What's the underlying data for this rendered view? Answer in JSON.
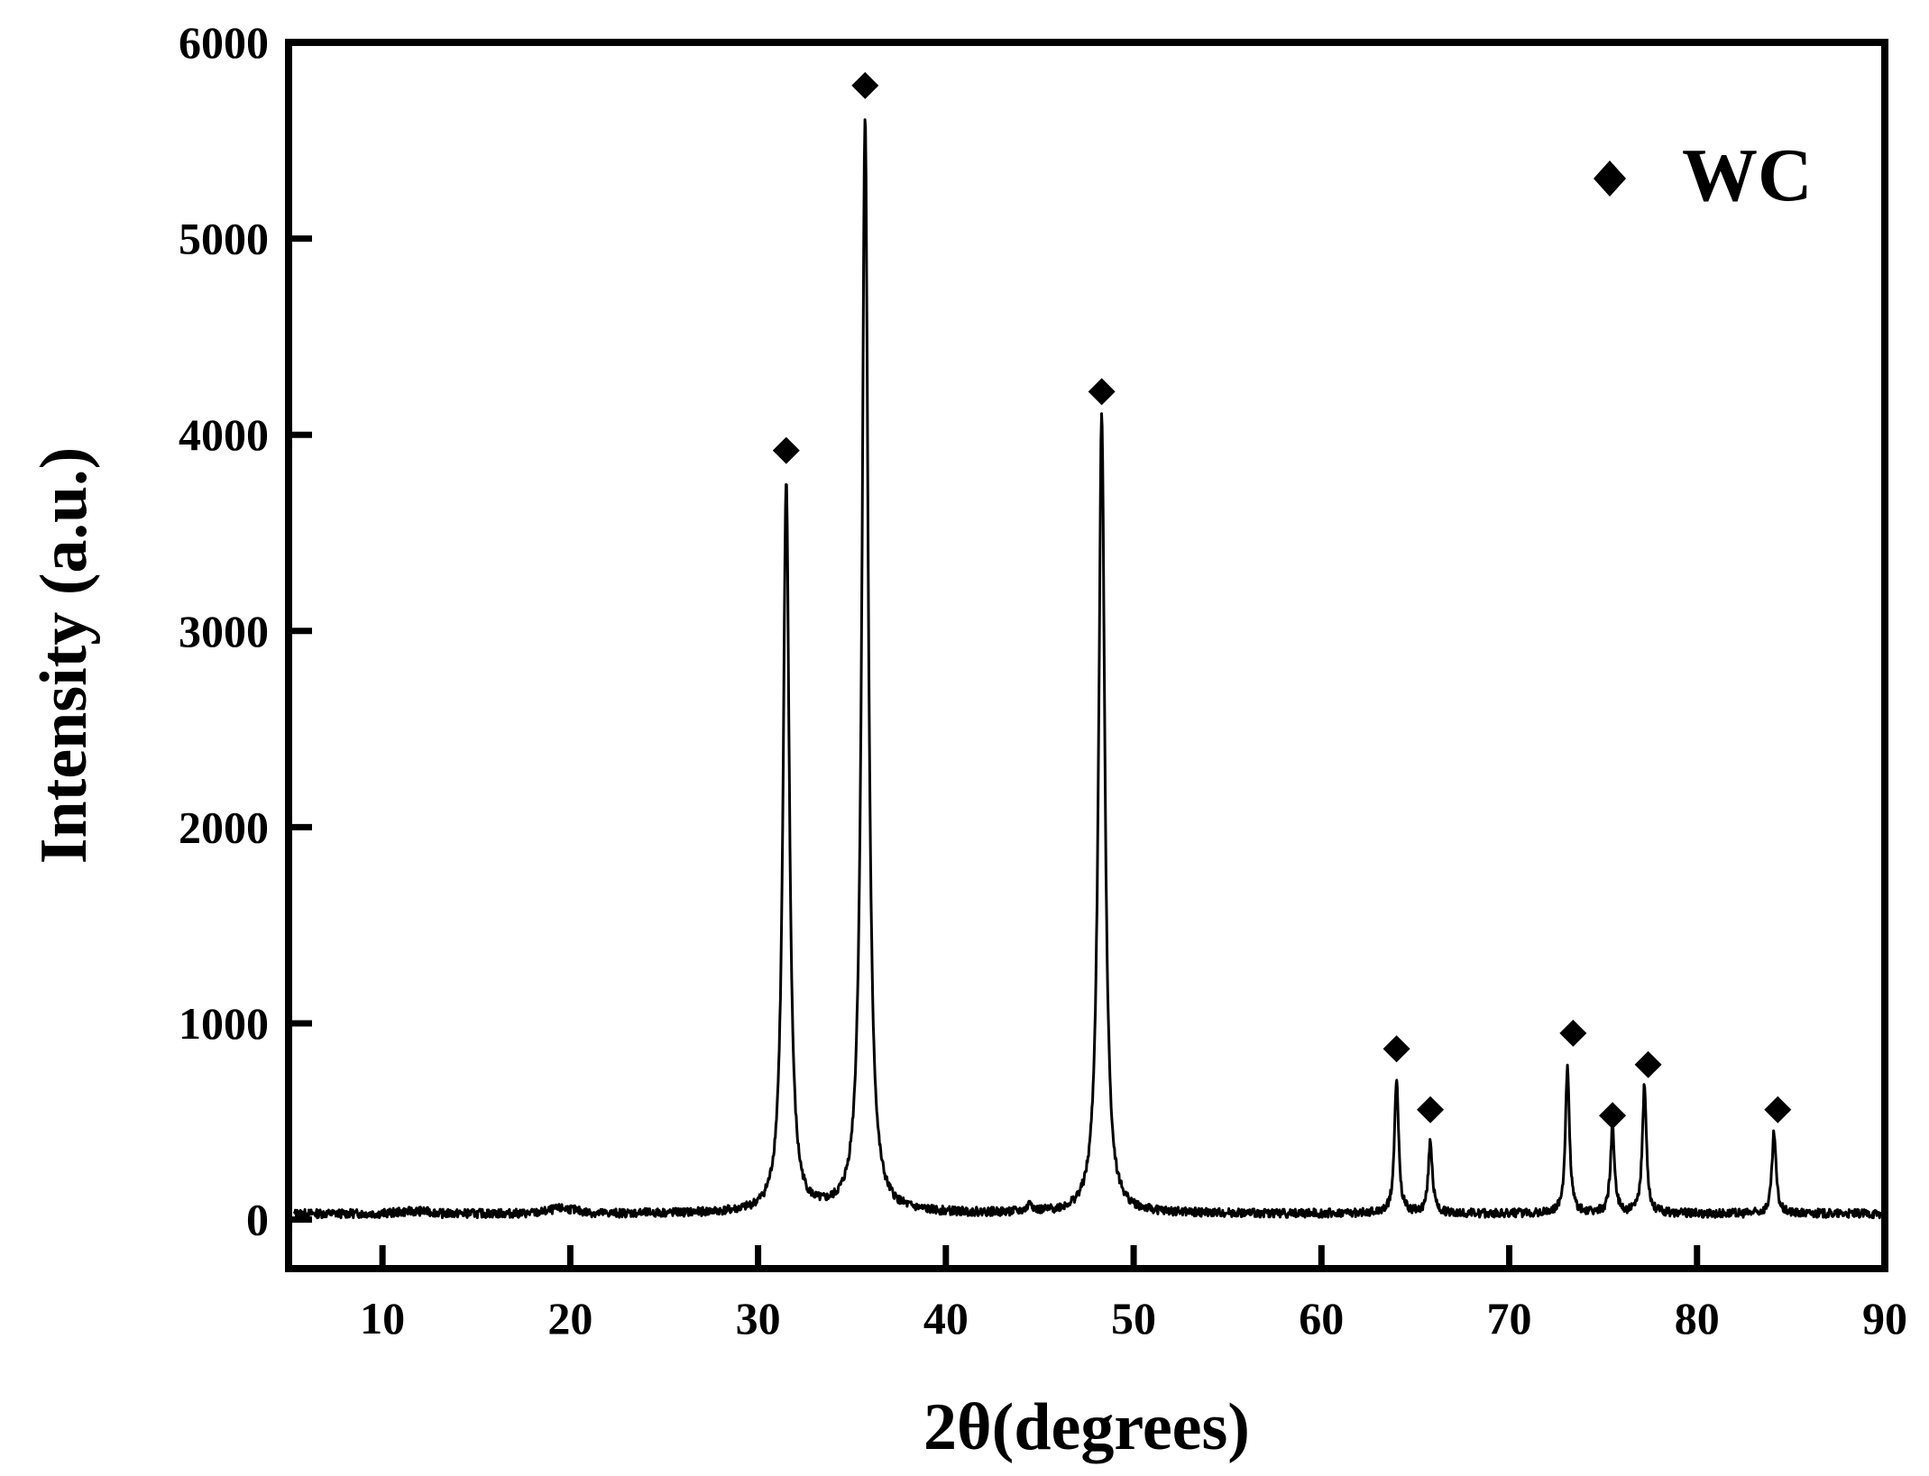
{
  "chart_data": {
    "type": "line",
    "xlabel": "2θ(degrees)",
    "ylabel": "Intensity (a.u.)",
    "xlim": [
      5,
      90
    ],
    "ylim": [
      -250,
      6000
    ],
    "xticks": [
      10,
      20,
      30,
      40,
      50,
      60,
      70,
      80,
      90
    ],
    "yticks": [
      0,
      1000,
      2000,
      3000,
      4000,
      5000,
      6000
    ],
    "grid": false,
    "legend": {
      "position": "top-right",
      "entries": [
        {
          "marker": "diamond",
          "label": "WC"
        }
      ]
    },
    "baseline": 30,
    "series": [
      {
        "name": "WC",
        "color": "#000000",
        "peaks": [
          {
            "x": 31.5,
            "y": 3750
          },
          {
            "x": 35.7,
            "y": 5620
          },
          {
            "x": 44.5,
            "y": 80
          },
          {
            "x": 48.3,
            "y": 4100
          },
          {
            "x": 64.0,
            "y": 720
          },
          {
            "x": 65.8,
            "y": 400
          },
          {
            "x": 73.1,
            "y": 770
          },
          {
            "x": 75.5,
            "y": 470
          },
          {
            "x": 77.2,
            "y": 680
          },
          {
            "x": 84.1,
            "y": 440
          }
        ]
      }
    ],
    "markers": [
      {
        "x": 31.5,
        "y": 3920
      },
      {
        "x": 35.7,
        "y": 5780
      },
      {
        "x": 48.3,
        "y": 4220
      },
      {
        "x": 64.0,
        "y": 870
      },
      {
        "x": 65.8,
        "y": 560
      },
      {
        "x": 73.4,
        "y": 950
      },
      {
        "x": 75.5,
        "y": 530
      },
      {
        "x": 77.4,
        "y": 790
      },
      {
        "x": 84.3,
        "y": 560
      }
    ]
  }
}
